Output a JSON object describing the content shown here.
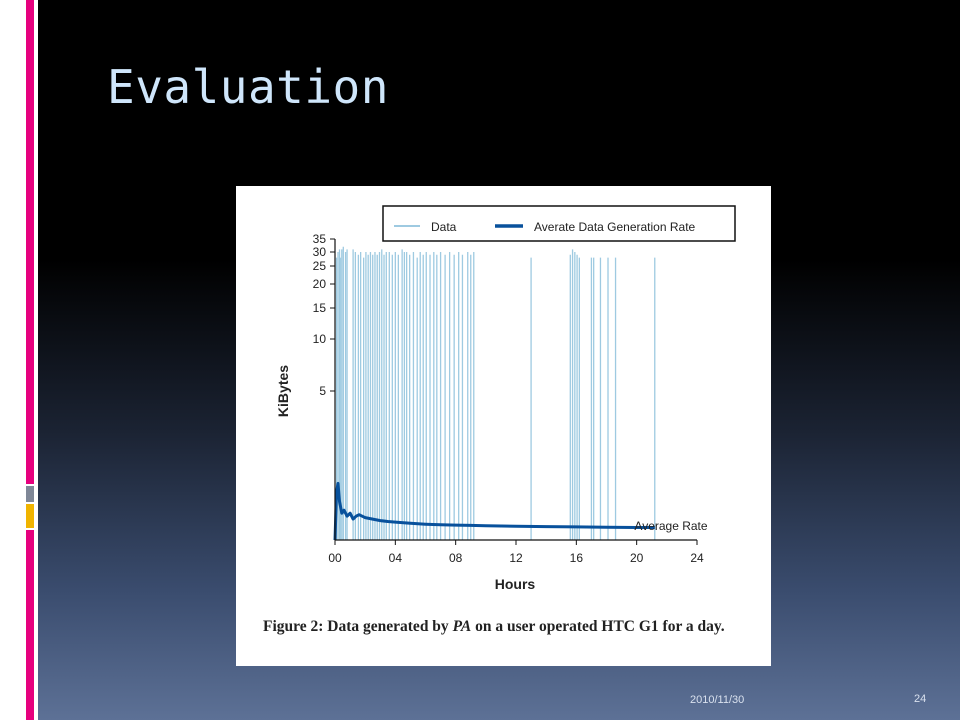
{
  "slide": {
    "title": "Evaluation",
    "date": "2010/11/30",
    "page_number": "24"
  },
  "caption": {
    "prefix": "Figure 2: Data generated by ",
    "emphasis": "PA",
    "suffix": " on a user operated HTC G1 for a day."
  },
  "colors": {
    "data_series": "#9ecae1",
    "rate_series": "#08519c",
    "title": "#cfe6fb"
  },
  "chart_data": {
    "type": "line",
    "title": "",
    "xlabel": "Hours",
    "ylabel": "KiBytes",
    "xlim": [
      0,
      24
    ],
    "y_scale": "custom (compressed, non-linear)",
    "x_ticks": [
      "00",
      "04",
      "08",
      "12",
      "16",
      "20",
      "24"
    ],
    "y_ticks": [
      5,
      10,
      15,
      20,
      25,
      30,
      35
    ],
    "legend": {
      "position": "top",
      "entries": [
        "Data",
        "Averate Data Generation Rate"
      ]
    },
    "annotations": [
      {
        "text": "Average Rate",
        "x": 21.2,
        "y": 0.4
      }
    ],
    "series": [
      {
        "name": "Data",
        "style": "impulses",
        "points": [
          [
            0.1,
            28
          ],
          [
            0.2,
            30
          ],
          [
            0.3,
            31
          ],
          [
            0.35,
            28
          ],
          [
            0.45,
            31
          ],
          [
            0.55,
            32
          ],
          [
            0.7,
            30
          ],
          [
            0.8,
            31
          ],
          [
            1.2,
            31
          ],
          [
            1.35,
            30
          ],
          [
            1.55,
            29
          ],
          [
            1.7,
            30
          ],
          [
            1.9,
            28
          ],
          [
            2.05,
            30
          ],
          [
            2.2,
            29
          ],
          [
            2.35,
            30
          ],
          [
            2.5,
            29
          ],
          [
            2.65,
            30
          ],
          [
            2.8,
            29
          ],
          [
            2.95,
            30
          ],
          [
            3.1,
            31
          ],
          [
            3.25,
            29
          ],
          [
            3.4,
            30
          ],
          [
            3.6,
            30
          ],
          [
            3.8,
            29
          ],
          [
            4.0,
            30
          ],
          [
            4.2,
            29
          ],
          [
            4.45,
            31
          ],
          [
            4.6,
            30
          ],
          [
            4.75,
            30
          ],
          [
            4.95,
            29
          ],
          [
            5.2,
            30
          ],
          [
            5.45,
            28
          ],
          [
            5.65,
            30
          ],
          [
            5.85,
            29
          ],
          [
            6.05,
            30
          ],
          [
            6.3,
            29
          ],
          [
            6.55,
            30
          ],
          [
            6.75,
            29
          ],
          [
            7.0,
            30
          ],
          [
            7.3,
            29
          ],
          [
            7.6,
            30
          ],
          [
            7.9,
            29
          ],
          [
            8.2,
            30
          ],
          [
            8.45,
            29
          ],
          [
            8.8,
            30
          ],
          [
            9.0,
            29
          ],
          [
            9.2,
            30
          ],
          [
            13.0,
            28
          ],
          [
            15.6,
            29
          ],
          [
            15.75,
            31
          ],
          [
            15.9,
            30
          ],
          [
            16.05,
            29
          ],
          [
            16.2,
            28
          ],
          [
            17.0,
            28
          ],
          [
            17.15,
            28
          ],
          [
            17.6,
            28
          ],
          [
            18.1,
            28
          ],
          [
            18.6,
            28
          ],
          [
            21.2,
            28
          ]
        ]
      },
      {
        "name": "Averate Data Generation Rate",
        "style": "line",
        "x": [
          0.0,
          0.1,
          0.2,
          0.3,
          0.45,
          0.6,
          0.8,
          1.0,
          1.2,
          1.4,
          1.6,
          1.8,
          2.0,
          2.5,
          3.0,
          3.5,
          4.0,
          5.0,
          6.0,
          7.0,
          8.0,
          9.0,
          10.0,
          12.0,
          14.0,
          16.0,
          18.0,
          20.0,
          21.2
        ],
        "y": [
          0.0,
          1.6,
          1.9,
          1.3,
          0.9,
          1.0,
          0.8,
          0.9,
          0.7,
          0.8,
          0.85,
          0.8,
          0.75,
          0.7,
          0.65,
          0.62,
          0.6,
          0.56,
          0.53,
          0.51,
          0.5,
          0.49,
          0.48,
          0.46,
          0.45,
          0.44,
          0.43,
          0.42,
          0.42
        ]
      }
    ]
  }
}
